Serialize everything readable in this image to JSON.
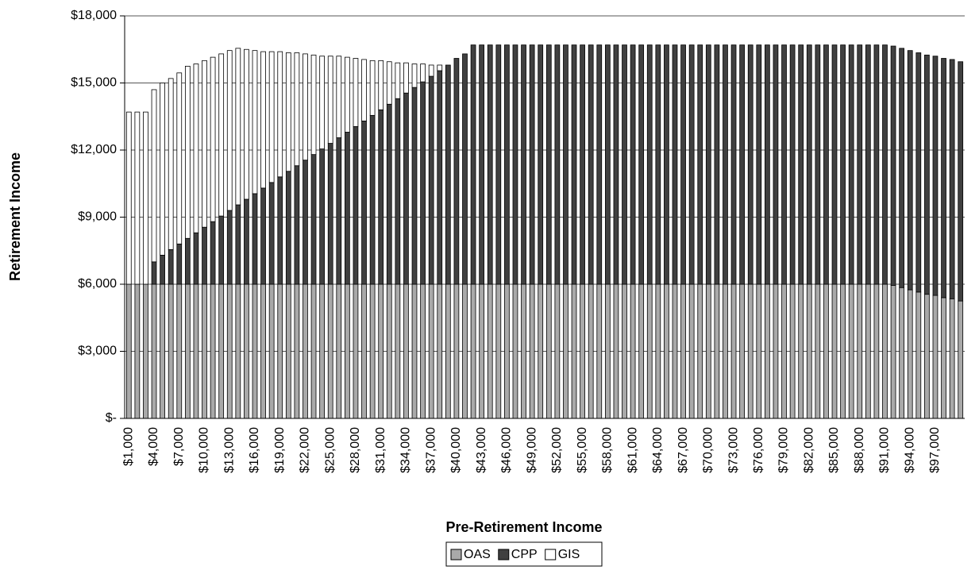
{
  "chart_data": {
    "type": "stacked_bar",
    "x_label": "Pre-Retirement Income",
    "y_label": "Retirement Income",
    "categories": [
      "$1,000",
      null,
      null,
      "$4,000",
      null,
      null,
      "$7,000",
      null,
      null,
      "$10,000",
      null,
      null,
      "$13,000",
      null,
      null,
      "$16,000",
      null,
      null,
      "$19,000",
      null,
      null,
      "$22,000",
      null,
      null,
      "$25,000",
      null,
      null,
      "$28,000",
      null,
      null,
      "$31,000",
      null,
      null,
      "$34,000",
      null,
      null,
      "$37,000",
      null,
      null,
      "$40,000",
      null,
      null,
      "$43,000",
      null,
      null,
      "$46,000",
      null,
      null,
      "$49,000",
      null,
      null,
      "$52,000",
      null,
      null,
      "$55,000",
      null,
      null,
      "$58,000",
      null,
      null,
      "$61,000",
      null,
      null,
      "$64,000",
      null,
      null,
      "$67,000",
      null,
      null,
      "$70,000",
      null,
      null,
      "$73,000",
      null,
      null,
      "$76,000",
      null,
      null,
      "$79,000",
      null,
      null,
      "$82,000",
      null,
      null,
      "$85,000",
      null,
      null,
      "$88,000",
      null,
      null,
      "$91,000",
      null,
      null,
      "$94,000",
      null,
      null,
      "$97,000",
      null,
      null,
      null
    ],
    "series": [
      {
        "name": "OAS",
        "color": "#a9a9a9",
        "values": [
          6000,
          6000,
          6000,
          6000,
          6000,
          6000,
          6000,
          6000,
          6000,
          6000,
          6000,
          6000,
          6000,
          6000,
          6000,
          6000,
          6000,
          6000,
          6000,
          6000,
          6000,
          6000,
          6000,
          6000,
          6000,
          6000,
          6000,
          6000,
          6000,
          6000,
          6000,
          6000,
          6000,
          6000,
          6000,
          6000,
          6000,
          6000,
          6000,
          6000,
          6000,
          6000,
          6000,
          6000,
          6000,
          6000,
          6000,
          6000,
          6000,
          6000,
          6000,
          6000,
          6000,
          6000,
          6000,
          6000,
          6000,
          6000,
          6000,
          6000,
          6000,
          6000,
          6000,
          6000,
          6000,
          6000,
          6000,
          6000,
          6000,
          6000,
          6000,
          6000,
          6000,
          6000,
          6000,
          6000,
          6000,
          6000,
          6000,
          6000,
          6000,
          6000,
          6000,
          6000,
          6000,
          6000,
          6000,
          6000,
          6000,
          6000,
          6000,
          5950,
          5850,
          5750,
          5650,
          5550,
          5500,
          5400,
          5350,
          5250
        ]
      },
      {
        "name": "CPP",
        "color": "#404040",
        "values": [
          0,
          0,
          0,
          1000,
          1300,
          1550,
          1800,
          2050,
          2300,
          2550,
          2800,
          3050,
          3300,
          3550,
          3800,
          4050,
          4300,
          4550,
          4800,
          5050,
          5300,
          5550,
          5800,
          6050,
          6300,
          6550,
          6800,
          7050,
          7300,
          7550,
          7800,
          8050,
          8300,
          8550,
          8800,
          9050,
          9300,
          9550,
          9800,
          10100,
          10300,
          10700,
          10700,
          10700,
          10700,
          10700,
          10700,
          10700,
          10700,
          10700,
          10700,
          10700,
          10700,
          10700,
          10700,
          10700,
          10700,
          10700,
          10700,
          10700,
          10700,
          10700,
          10700,
          10700,
          10700,
          10700,
          10700,
          10700,
          10700,
          10700,
          10700,
          10700,
          10700,
          10700,
          10700,
          10700,
          10700,
          10700,
          10700,
          10700,
          10700,
          10700,
          10700,
          10700,
          10700,
          10700,
          10700,
          10700,
          10700,
          10700,
          10700,
          10700,
          10700,
          10700,
          10700,
          10700,
          10700,
          10700,
          10700,
          10700
        ]
      },
      {
        "name": "GIS",
        "color": "#ffffff",
        "values": [
          7700,
          7700,
          7700,
          7700,
          7700,
          7650,
          7650,
          7700,
          7550,
          7450,
          7350,
          7250,
          7150,
          7000,
          6700,
          6400,
          6100,
          5850,
          5600,
          5300,
          5050,
          4750,
          4450,
          4150,
          3900,
          3650,
          3350,
          3050,
          2750,
          2450,
          2200,
          1900,
          1600,
          1350,
          1050,
          800,
          500,
          250,
          0,
          0,
          0,
          0,
          0,
          0,
          0,
          0,
          0,
          0,
          0,
          0,
          0,
          0,
          0,
          0,
          0,
          0,
          0,
          0,
          0,
          0,
          0,
          0,
          0,
          0,
          0,
          0,
          0,
          0,
          0,
          0,
          0,
          0,
          0,
          0,
          0,
          0,
          0,
          0,
          0,
          0,
          0,
          0,
          0,
          0,
          0,
          0,
          0,
          0,
          0,
          0,
          0,
          0,
          0,
          0,
          0,
          0,
          0,
          0,
          0,
          0
        ]
      }
    ],
    "ylim": [
      0,
      18000
    ],
    "yticks": [
      {
        "value": 0,
        "label": "$-"
      },
      {
        "value": 3000,
        "label": "$3,000"
      },
      {
        "value": 6000,
        "label": "$6,000"
      },
      {
        "value": 9000,
        "label": "$9,000"
      },
      {
        "value": 12000,
        "label": "$12,000"
      },
      {
        "value": 15000,
        "label": "$15,000"
      },
      {
        "value": 18000,
        "label": "$18,000"
      }
    ],
    "grid": true,
    "legend": "bottom"
  }
}
